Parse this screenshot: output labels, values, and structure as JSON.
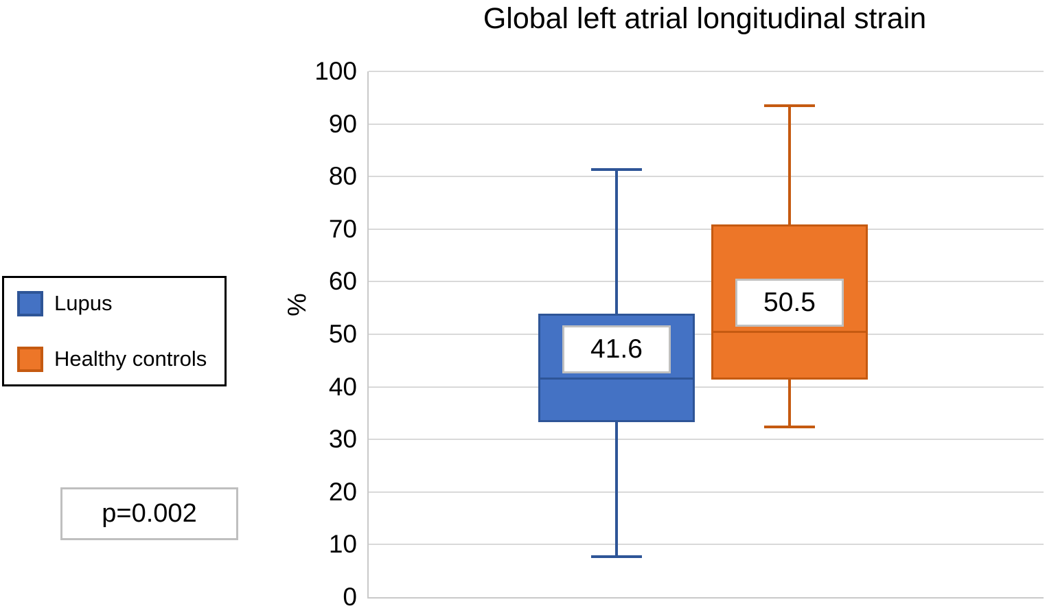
{
  "chart_data": {
    "type": "boxplot",
    "title": "Global left atrial longitudinal strain",
    "ylabel": "%",
    "ylim": [
      0,
      100
    ],
    "yticks": [
      0,
      10,
      20,
      30,
      40,
      50,
      60,
      70,
      80,
      90,
      100
    ],
    "grid": true,
    "legend_position": "left",
    "series": [
      {
        "name": "Lupus",
        "min": 7.7,
        "q1": 33.3,
        "median": 41.6,
        "q3": 53.9,
        "max": 81.3,
        "median_label": "41.6",
        "fill": "#4472C4",
        "stroke": "#2E5597"
      },
      {
        "name": "Healthy controls",
        "min": 32.4,
        "q1": 41.4,
        "median": 50.5,
        "q3": 70.9,
        "max": 93.5,
        "median_label": "50.5",
        "fill": "#ED7628",
        "stroke": "#C55A11"
      }
    ],
    "annotations": [
      "p=0.002"
    ]
  }
}
